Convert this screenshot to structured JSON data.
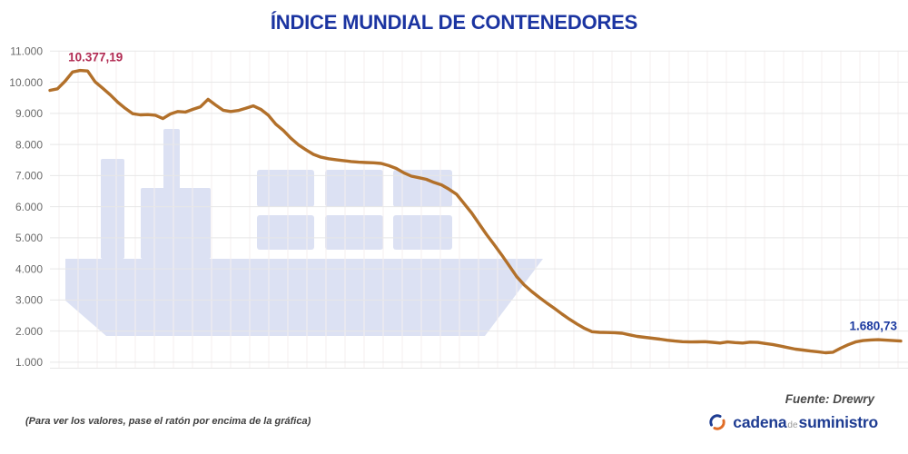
{
  "title": "ÍNDICE MUNDIAL DE CONTENEDORES",
  "footnote": "(Para ver los valores, pase el ratón por encima de la gráfica)",
  "source": "Fuente: Drewry",
  "logo": {
    "word1": "cadena",
    "word2": "de",
    "word3": "suministro"
  },
  "colors": {
    "title_blue": "#1b34a1",
    "line_copper": "#b2702a",
    "max_label_red": "#b12a52",
    "last_label_blue": "#1c3aa0",
    "watermark_lavender": "#dce1f3",
    "grid_horizontal": "#e7e7e7",
    "grid_vertical": "#f4efef",
    "axis_text_gray": "#6b6b6b",
    "logo_blue": "#1e3c92",
    "logo_orange": "#e06c26"
  },
  "chart_data": {
    "type": "line",
    "title": "ÍNDICE MUNDIAL DE CONTENEDORES",
    "xlabel": "",
    "ylabel": "",
    "ylim": [
      1000,
      11000
    ],
    "grid": true,
    "x_tick_labels": [],
    "y_ticks": [
      {
        "value": 11000,
        "label": "11.000"
      },
      {
        "value": 10000,
        "label": "10.000"
      },
      {
        "value": 9000,
        "label": "9.000"
      },
      {
        "value": 8000,
        "label": "8.000"
      },
      {
        "value": 7000,
        "label": "7.000"
      },
      {
        "value": 6000,
        "label": "6.000"
      },
      {
        "value": 5000,
        "label": "5.000"
      },
      {
        "value": 4000,
        "label": "4.000"
      },
      {
        "value": 3000,
        "label": "3.000"
      },
      {
        "value": 2000,
        "label": "2.000"
      },
      {
        "value": 1000,
        "label": "1.000"
      }
    ],
    "annotations": [
      {
        "point": "max",
        "text": "10.377,19",
        "value": 10377.19,
        "color": "#b12a52"
      },
      {
        "point": "last",
        "text": "1.680,73",
        "value": 1680.73,
        "color": "#1c3aa0"
      }
    ],
    "source": "Drewry",
    "series": [
      {
        "name": "Índice mundial de contenedores",
        "values": [
          9740,
          9790,
          10030,
          10330,
          10377.19,
          10360,
          10010,
          9810,
          9600,
          9360,
          9160,
          8990,
          8950,
          8960,
          8940,
          8830,
          8980,
          9060,
          9040,
          9130,
          9210,
          9450,
          9270,
          9100,
          9060,
          9090,
          9160,
          9240,
          9130,
          8940,
          8650,
          8450,
          8200,
          7990,
          7830,
          7680,
          7590,
          7540,
          7510,
          7480,
          7450,
          7430,
          7420,
          7410,
          7390,
          7320,
          7230,
          7090,
          6980,
          6930,
          6880,
          6780,
          6700,
          6560,
          6400,
          6100,
          5800,
          5450,
          5100,
          4780,
          4450,
          4100,
          3750,
          3480,
          3270,
          3080,
          2900,
          2730,
          2550,
          2380,
          2230,
          2090,
          1980,
          1960,
          1955,
          1950,
          1930,
          1880,
          1830,
          1800,
          1770,
          1740,
          1705,
          1680,
          1660,
          1650,
          1655,
          1660,
          1640,
          1615,
          1650,
          1630,
          1615,
          1645,
          1635,
          1600,
          1570,
          1520,
          1470,
          1420,
          1390,
          1360,
          1335,
          1305,
          1320,
          1450,
          1560,
          1650,
          1695,
          1715,
          1725,
          1710,
          1695,
          1680.73
        ]
      }
    ]
  }
}
